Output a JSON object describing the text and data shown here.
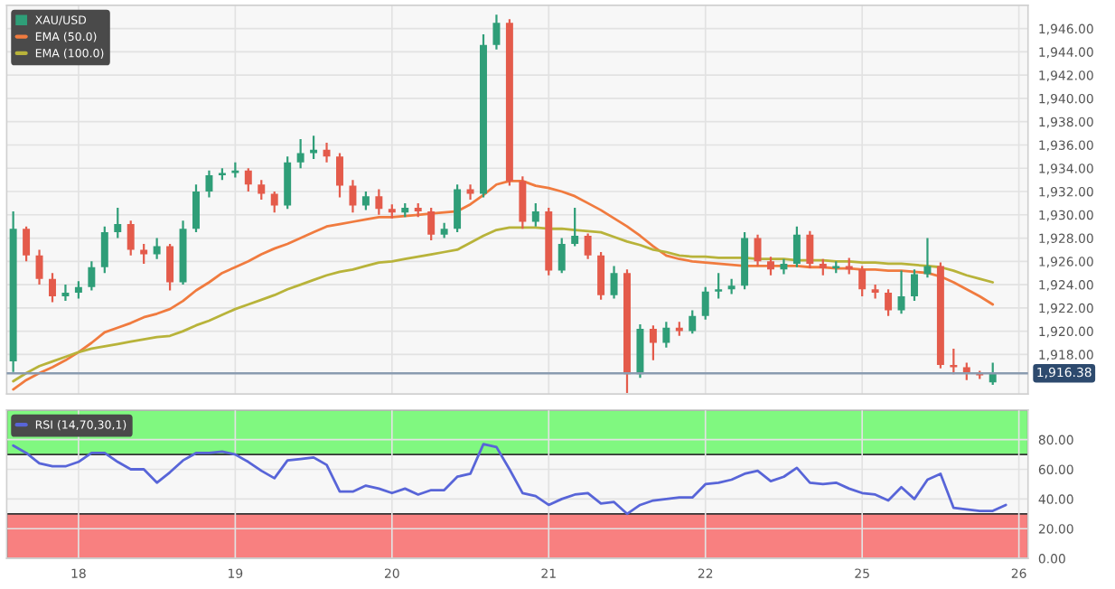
{
  "chart_data": [
    {
      "type": "candlestick",
      "categories": [
        null,
        null,
        null,
        null,
        null,
        "18",
        null,
        null,
        null,
        null,
        null,
        null,
        null,
        null,
        null,
        null,
        null,
        "19",
        null,
        null,
        null,
        null,
        null,
        null,
        null,
        null,
        null,
        null,
        null,
        "20",
        null,
        null,
        null,
        null,
        null,
        null,
        null,
        null,
        null,
        null,
        null,
        "21",
        null,
        null,
        null,
        null,
        null,
        null,
        null,
        null,
        null,
        null,
        null,
        "22",
        null,
        null,
        null,
        null,
        null,
        null,
        null,
        null,
        null,
        null,
        null,
        "25",
        null,
        null,
        null,
        null,
        null,
        null,
        null,
        null,
        null,
        null,
        null,
        "26"
      ],
      "ylim": [
        1914.6,
        1948.0
      ],
      "yticks": [
        {
          "value": 1918,
          "label": "1,918.00"
        },
        {
          "value": 1920,
          "label": "1,920.00"
        },
        {
          "value": 1922,
          "label": "1,922.00"
        },
        {
          "value": 1924,
          "label": "1,924.00"
        },
        {
          "value": 1926,
          "label": "1,926.00"
        },
        {
          "value": 1928,
          "label": "1,928.00"
        },
        {
          "value": 1930,
          "label": "1,930.00"
        },
        {
          "value": 1932,
          "label": "1,932.00"
        },
        {
          "value": 1934,
          "label": "1,934.00"
        },
        {
          "value": 1936,
          "label": "1,936.00"
        },
        {
          "value": 1938,
          "label": "1,938.00"
        },
        {
          "value": 1940,
          "label": "1,940.00"
        },
        {
          "value": 1942,
          "label": "1,942.00"
        },
        {
          "value": 1944,
          "label": "1,944.00"
        },
        {
          "value": 1946,
          "label": "1,946.00"
        }
      ],
      "tick_labels": "y",
      "grid": true,
      "legend": "top left",
      "ref_lines": [
        {
          "axis": "y",
          "value": 1916.38,
          "label": "1,916.38",
          "color": "#8a9bb0"
        }
      ],
      "series": [
        {
          "name": "XAU/USD",
          "ohlc": [
            [
              1917.4,
              1930.3,
              1916.5,
              1928.8
            ],
            [
              1928.8,
              1929,
              1926,
              1926.5
            ],
            [
              1926.5,
              1927,
              1924,
              1924.5
            ],
            [
              1924.5,
              1925,
              1922.5,
              1923
            ],
            [
              1923,
              1924,
              1922.6,
              1923.3
            ],
            [
              1923.3,
              1924.3,
              1922.8,
              1923.8
            ],
            [
              1923.8,
              1926,
              1923.5,
              1925.5
            ],
            [
              1925.5,
              1929,
              1925,
              1928.5
            ],
            [
              1928.5,
              1930.6,
              1928,
              1929.2
            ],
            [
              1929.2,
              1929.5,
              1926.5,
              1927
            ],
            [
              1927,
              1927.5,
              1925.8,
              1926.6
            ],
            [
              1926.6,
              1928,
              1926.2,
              1927.3
            ],
            [
              1927.3,
              1927.5,
              1923.5,
              1924.2
            ],
            [
              1924.2,
              1929.5,
              1924,
              1928.8
            ],
            [
              1928.8,
              1932.6,
              1928.5,
              1932
            ],
            [
              1932,
              1933.8,
              1931.5,
              1933.4
            ],
            [
              1933.4,
              1934,
              1933,
              1933.6
            ],
            [
              1933.6,
              1934.5,
              1933.2,
              1933.8
            ],
            [
              1933.8,
              1934,
              1932,
              1932.6
            ],
            [
              1932.6,
              1933,
              1931.3,
              1931.8
            ],
            [
              1931.8,
              1932,
              1930.2,
              1930.8
            ],
            [
              1930.8,
              1935,
              1930.5,
              1934.5
            ],
            [
              1934.5,
              1936.5,
              1934,
              1935.3
            ],
            [
              1935.3,
              1936.8,
              1934.8,
              1935.6
            ],
            [
              1935.6,
              1936.2,
              1934.5,
              1935
            ],
            [
              1935,
              1935.3,
              1931.5,
              1932.5
            ],
            [
              1932.5,
              1933,
              1930.2,
              1930.8
            ],
            [
              1930.8,
              1932,
              1930.4,
              1931.6
            ],
            [
              1931.6,
              1932.2,
              1930,
              1930.5
            ],
            [
              1930.5,
              1930.9,
              1929.7,
              1930.2
            ],
            [
              1930.2,
              1931,
              1929.8,
              1930.6
            ],
            [
              1930.6,
              1931,
              1929.8,
              1930.3
            ],
            [
              1930.3,
              1930.6,
              1927.8,
              1928.3
            ],
            [
              1928.3,
              1929.3,
              1928,
              1928.8
            ],
            [
              1928.8,
              1932.6,
              1928.5,
              1932.2
            ],
            [
              1932.2,
              1932.6,
              1931.3,
              1931.8
            ],
            [
              1931.8,
              1945.5,
              1931.5,
              1944.6
            ],
            [
              1944.6,
              1947.2,
              1944.2,
              1946.5
            ],
            [
              1946.5,
              1946.8,
              1932.5,
              1932.9
            ],
            [
              1932.9,
              1933.3,
              1928.8,
              1929.4
            ],
            [
              1929.4,
              1931,
              1929,
              1930.3
            ],
            [
              1930.3,
              1930.6,
              1924.8,
              1925.2
            ],
            [
              1925.2,
              1928,
              1925,
              1927.5
            ],
            [
              1927.5,
              1930.6,
              1927.3,
              1928.2
            ],
            [
              1928.2,
              1928.4,
              1926.2,
              1926.5
            ],
            [
              1926.5,
              1926.8,
              1922.7,
              1923.1
            ],
            [
              1923.1,
              1925.6,
              1922.8,
              1925
            ],
            [
              1925,
              1925.3,
              1914.7,
              1916.3
            ],
            [
              1916.3,
              1920.6,
              1916,
              1920.2
            ],
            [
              1920.2,
              1920.5,
              1917.5,
              1919
            ],
            [
              1919,
              1920.8,
              1918.6,
              1920.3
            ],
            [
              1920.3,
              1920.8,
              1919.6,
              1920
            ],
            [
              1920,
              1921.8,
              1919.8,
              1921.3
            ],
            [
              1921.3,
              1923.8,
              1921,
              1923.4
            ],
            [
              1923.4,
              1925,
              1922.8,
              1923.6
            ],
            [
              1923.6,
              1924.5,
              1923.2,
              1923.9
            ],
            [
              1923.9,
              1928.5,
              1923.6,
              1928
            ],
            [
              1928,
              1928.3,
              1925.6,
              1926
            ],
            [
              1926,
              1926.4,
              1924.8,
              1925.3
            ],
            [
              1925.3,
              1926.2,
              1924.9,
              1925.8
            ],
            [
              1925.8,
              1929,
              1925.5,
              1928.3
            ],
            [
              1928.3,
              1928.6,
              1925.4,
              1925.8
            ],
            [
              1925.8,
              1926.2,
              1924.8,
              1925.4
            ],
            [
              1925.4,
              1926,
              1925,
              1925.6
            ],
            [
              1925.6,
              1926.3,
              1924.9,
              1925.3
            ],
            [
              1925.3,
              1925.6,
              1923,
              1923.6
            ],
            [
              1923.6,
              1924,
              1922.8,
              1923.3
            ],
            [
              1923.3,
              1923.6,
              1921.3,
              1921.8
            ],
            [
              1921.8,
              1925.2,
              1921.5,
              1923
            ],
            [
              1923,
              1925.3,
              1922.6,
              1924.9
            ],
            [
              1924.9,
              1928,
              1924.6,
              1925.6
            ],
            [
              1925.6,
              1925.9,
              1916.8,
              1917.1
            ],
            [
              1917.1,
              1918.5,
              1916.3,
              1916.9
            ],
            [
              1916.9,
              1917.3,
              1915.8,
              1916.4
            ],
            [
              1916.4,
              1916.6,
              1915.9,
              1916.2
            ],
            [
              1915.6,
              1917.3,
              1915.4,
              1916.38
            ],
            null,
            null
          ],
          "colors": [
            "#2f9e78",
            "#e45b4b",
            "#e45b4b",
            "#e45b4b",
            "#2f9e78",
            "#2f9e78",
            "#2f9e78",
            "#2f9e78",
            "#2f9e78",
            "#e45b4b",
            "#e45b4b",
            "#2f9e78",
            "#e45b4b",
            "#2f9e78",
            "#2f9e78",
            "#2f9e78",
            "#2f9e78",
            "#2f9e78",
            "#e45b4b",
            "#e45b4b",
            "#e45b4b",
            "#2f9e78",
            "#2f9e78",
            "#2f9e78",
            "#e45b4b",
            "#e45b4b",
            "#e45b4b",
            "#2f9e78",
            "#e45b4b",
            "#e45b4b",
            "#2f9e78",
            "#e45b4b",
            "#e45b4b",
            "#2f9e78",
            "#2f9e78",
            "#e45b4b",
            "#2f9e78",
            "#2f9e78",
            "#e45b4b",
            "#e45b4b",
            "#2f9e78",
            "#e45b4b",
            "#2f9e78",
            "#2f9e78",
            "#e45b4b",
            "#e45b4b",
            "#2f9e78",
            "#e45b4b",
            "#2f9e78",
            "#e45b4b",
            "#2f9e78",
            "#e45b4b",
            "#2f9e78",
            "#2f9e78",
            "#2f9e78",
            "#2f9e78",
            "#2f9e78",
            "#e45b4b",
            "#e45b4b",
            "#2f9e78",
            "#2f9e78",
            "#e45b4b",
            "#e45b4b",
            "#2f9e78",
            "#e45b4b",
            "#e45b4b",
            "#e45b4b",
            "#e45b4b",
            "#2f9e78",
            "#2f9e78",
            "#2f9e78",
            "#e45b4b",
            "#e45b4b",
            "#e45b4b",
            "#e45b4b",
            "#2f9e78",
            null,
            null
          ]
        },
        {
          "name": "EMA (50.0)",
          "type": "line",
          "color": "#f07b3f",
          "values": [
            1915.0,
            1915.8,
            1916.4,
            1916.9,
            1917.5,
            1918.2,
            1919.0,
            1919.9,
            1920.3,
            1920.7,
            1921.2,
            1921.5,
            1921.9,
            1922.6,
            1923.5,
            1924.2,
            1925.0,
            1925.5,
            1926.0,
            1926.6,
            1927.1,
            1927.5,
            1928.0,
            1928.5,
            1929.0,
            1929.2,
            1929.4,
            1929.6,
            1929.8,
            1929.8,
            1929.9,
            1930.0,
            1930.1,
            1930.2,
            1930.3,
            1930.9,
            1931.7,
            1932.6,
            1932.9,
            1932.9,
            1932.5,
            1932.3,
            1932.0,
            1931.6,
            1931.0,
            1930.4,
            1929.7,
            1929.0,
            1928.2,
            1927.3,
            1926.5,
            1926.2,
            1926.0,
            1925.9,
            1925.8,
            1925.7,
            1925.6,
            1925.6,
            1925.6,
            1925.6,
            1925.6,
            1925.5,
            1925.5,
            1925.4,
            1925.4,
            1925.3,
            1925.3,
            1925.2,
            1925.2,
            1925.1,
            1925.0,
            1924.7,
            1924.2,
            1923.6,
            1923.0,
            1922.3,
            null,
            null
          ]
        },
        {
          "name": "EMA (100.0)",
          "type": "line",
          "color": "#b8b33a",
          "values": [
            1915.7,
            1916.4,
            1917.0,
            1917.4,
            1917.8,
            1918.2,
            1918.5,
            1918.7,
            1918.9,
            1919.1,
            1919.3,
            1919.5,
            1919.6,
            1920.0,
            1920.5,
            1920.9,
            1921.4,
            1921.9,
            1922.3,
            1922.7,
            1923.1,
            1923.6,
            1924.0,
            1924.4,
            1924.8,
            1925.1,
            1925.3,
            1925.6,
            1925.9,
            1926.0,
            1926.2,
            1926.4,
            1926.6,
            1926.8,
            1927.0,
            1927.6,
            1928.2,
            1928.7,
            1928.9,
            1928.9,
            1928.9,
            1928.8,
            1928.8,
            1928.7,
            1928.6,
            1928.5,
            1928.1,
            1927.7,
            1927.4,
            1927.0,
            1926.8,
            1926.5,
            1926.4,
            1926.4,
            1926.3,
            1926.3,
            1926.3,
            1926.2,
            1926.2,
            1926.2,
            1926.1,
            1926.1,
            1926.1,
            1926.0,
            1926.0,
            1925.9,
            1925.9,
            1925.8,
            1925.8,
            1925.7,
            1925.6,
            1925.5,
            1925.2,
            1924.8,
            1924.5,
            1924.2,
            null,
            null
          ]
        }
      ]
    },
    {
      "type": "line",
      "categories": [
        null,
        null,
        null,
        null,
        null,
        "18",
        null,
        null,
        null,
        null,
        null,
        null,
        null,
        null,
        null,
        null,
        null,
        "19",
        null,
        null,
        null,
        null,
        null,
        null,
        null,
        null,
        null,
        null,
        null,
        "20",
        null,
        null,
        null,
        null,
        null,
        null,
        null,
        null,
        null,
        null,
        null,
        "21",
        null,
        null,
        null,
        null,
        null,
        null,
        null,
        null,
        null,
        null,
        null,
        "22",
        null,
        null,
        null,
        null,
        null,
        null,
        null,
        null,
        null,
        null,
        null,
        "25",
        null,
        null,
        null,
        null,
        null,
        null,
        null,
        null,
        null,
        null,
        null,
        "26"
      ],
      "ylim": [
        0,
        100
      ],
      "yticks": [
        {
          "value": 0,
          "label": "0.00"
        },
        {
          "value": 20,
          "label": "20.00"
        },
        {
          "value": 40,
          "label": "40.00"
        },
        {
          "value": 60,
          "label": "60.00"
        },
        {
          "value": 80,
          "label": "80.00"
        }
      ],
      "grid": true,
      "legend": "top left",
      "bands": [
        {
          "axis": "y",
          "from": 70,
          "to": 100,
          "color": "#80f880"
        },
        {
          "axis": "y",
          "from": 0,
          "to": 30,
          "color": "#f88080"
        }
      ],
      "series": [
        {
          "name": "RSI (14,70,30,1)",
          "color": "#5865d8",
          "values": [
            76,
            71,
            64,
            62,
            62,
            65,
            71,
            71,
            65,
            60,
            60,
            51,
            58,
            66,
            71,
            71,
            72,
            70,
            65,
            59,
            54,
            66,
            67,
            68,
            63,
            45,
            45,
            49,
            47,
            44,
            47,
            43,
            46,
            46,
            55,
            57,
            77,
            75,
            60,
            44,
            42,
            36,
            40,
            43,
            44,
            37,
            38,
            30,
            36,
            39,
            40,
            41,
            41,
            50,
            51,
            53,
            57,
            59,
            52,
            55,
            61,
            51,
            50,
            51,
            47,
            44,
            43,
            39,
            48,
            40,
            53,
            57,
            34,
            33,
            32,
            32,
            36,
            null
          ]
        }
      ]
    }
  ]
}
